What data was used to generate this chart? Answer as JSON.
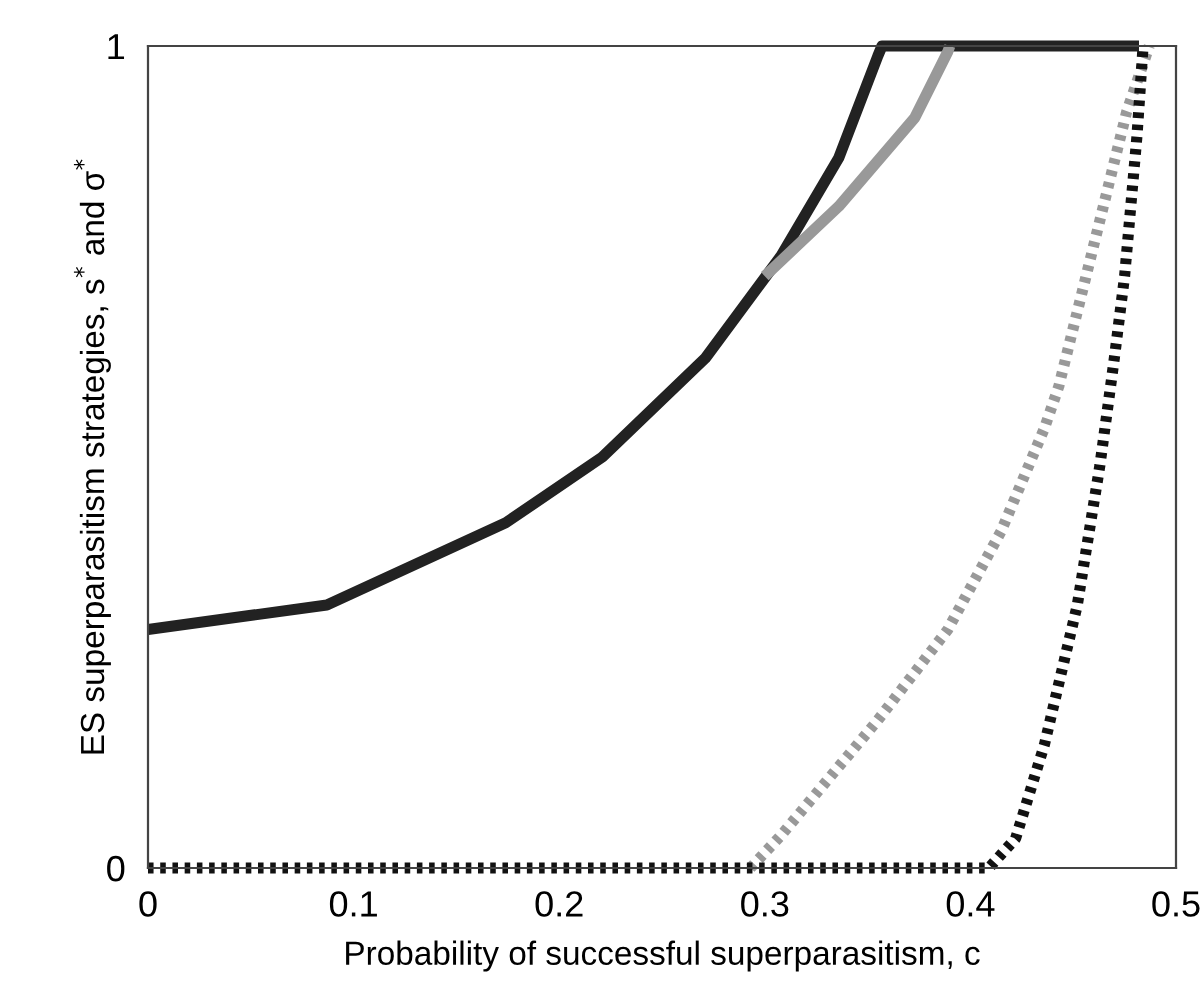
{
  "chart_data": {
    "type": "line",
    "xlabel": "Probability of successful superparasitism, c",
    "ylabel": "ES superparasitism strategies, s$^{*}$ and σ$^{*}$",
    "xlim": [
      0,
      0.5
    ],
    "ylim": [
      0,
      1
    ],
    "xticks": [
      0,
      0.1,
      0.2,
      0.3,
      0.4,
      0.5
    ],
    "yticks": [
      0,
      1
    ],
    "marker": "none",
    "series": [
      {
        "color": "#222222",
        "line_style": "solid",
        "x": [
          0,
          0.087,
          0.174,
          0.221,
          0.271,
          0.308,
          0.336,
          0.355,
          0.357,
          0.482
        ],
        "values": [
          0.29,
          0.32,
          0.42,
          0.5,
          0.62,
          0.745,
          0.864,
          0.988,
          1,
          1
        ]
      },
      {
        "color": "#999999",
        "line_style": "solid",
        "x": [
          0.3,
          0.336,
          0.373,
          0.389,
          0.39
        ],
        "values": [
          0.72,
          0.805,
          0.913,
          0.993,
          1
        ]
      },
      {
        "color": "#999999",
        "line_style": "dotted",
        "x": [
          0.293,
          0.308,
          0.355,
          0.389,
          0.415,
          0.436,
          0.443,
          0.463,
          0.476,
          0.487
        ],
        "values": [
          0,
          0.04,
          0.18,
          0.29,
          0.41,
          0.535,
          0.586,
          0.788,
          0.92,
          1
        ]
      },
      {
        "color": "#111111",
        "line_style": "dotted",
        "x": [
          0,
          0.409,
          0.422,
          0.436,
          0.452,
          0.463,
          0.47,
          0.475,
          0.481,
          0.484
        ],
        "values": [
          0,
          0,
          0.036,
          0.15,
          0.32,
          0.49,
          0.62,
          0.72,
          0.89,
          1
        ]
      }
    ]
  }
}
